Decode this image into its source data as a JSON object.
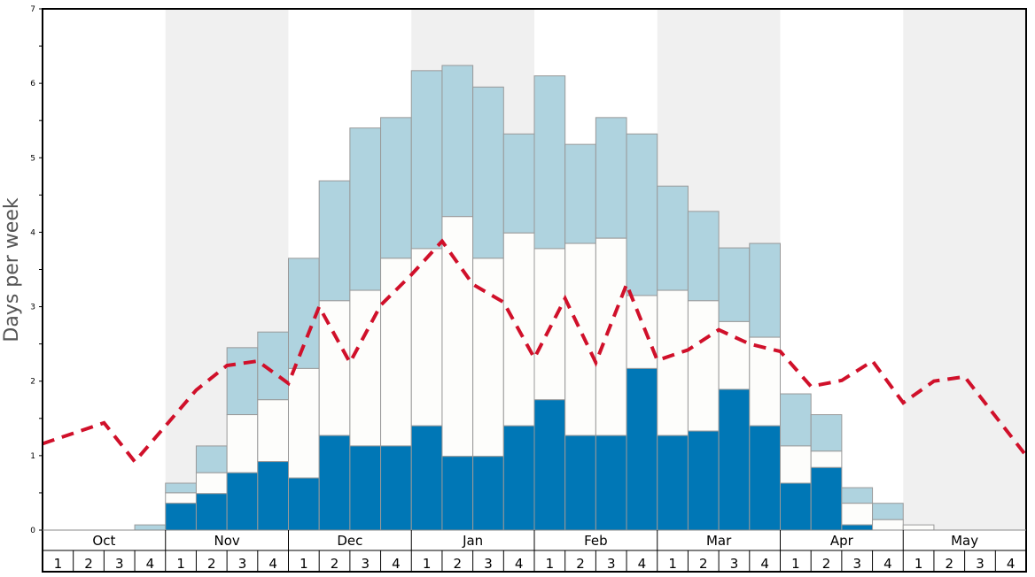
{
  "chart_data": {
    "type": "bar",
    "subtype": "stacked-bar-with-line",
    "ylabel": "Days per week",
    "ylim": [
      0,
      7
    ],
    "yticks": [
      0,
      1,
      2,
      3,
      4,
      5,
      6,
      7
    ],
    "months": [
      "Oct",
      "Nov",
      "Dec",
      "Jan",
      "Feb",
      "Mar",
      "Apr",
      "May"
    ],
    "week_labels": [
      "1",
      "2",
      "3",
      "4"
    ],
    "colors": {
      "segment_bottom": "#0077b6",
      "segment_middle": "#fdfdfb",
      "segment_top": "#afd3df",
      "line": "#d0102a",
      "shade": "#f0f0f0"
    },
    "series": [
      {
        "name": "bottom",
        "values": [
          0,
          0,
          0,
          0,
          0.36,
          0.49,
          0.77,
          0.92,
          0.7,
          1.27,
          1.13,
          1.13,
          1.4,
          0.99,
          0.99,
          1.4,
          1.75,
          1.27,
          1.27,
          2.17,
          1.27,
          1.33,
          1.89,
          1.4,
          0.63,
          0.84,
          0.07,
          0,
          0,
          0,
          0,
          0
        ]
      },
      {
        "name": "middle",
        "cumulative": [
          0,
          0,
          0,
          0,
          0.5,
          0.77,
          1.55,
          1.75,
          2.17,
          3.08,
          3.22,
          3.65,
          3.78,
          4.21,
          3.65,
          3.99,
          3.78,
          3.85,
          3.92,
          3.15,
          3.22,
          3.08,
          2.8,
          2.59,
          1.13,
          1.06,
          0.36,
          0.14,
          0.07,
          0,
          0,
          0
        ]
      },
      {
        "name": "top",
        "cumulative": [
          0,
          0,
          0,
          0.07,
          0.63,
          1.13,
          2.45,
          2.66,
          3.65,
          4.69,
          5.4,
          5.54,
          6.17,
          6.24,
          5.95,
          5.32,
          6.1,
          5.18,
          5.54,
          5.32,
          4.62,
          4.28,
          3.79,
          3.85,
          1.83,
          1.55,
          0.57,
          0.36,
          0.07,
          0,
          0,
          0
        ]
      }
    ],
    "line": {
      "name": "average",
      "style": "dashed",
      "values": [
        1.16,
        1.3,
        1.44,
        0.92,
        1.4,
        1.88,
        2.21,
        2.27,
        1.97,
        3.0,
        2.25,
        3.02,
        3.43,
        3.88,
        3.3,
        3.06,
        2.31,
        3.11,
        2.25,
        3.3,
        2.28,
        2.42,
        2.69,
        2.5,
        2.4,
        1.93,
        2.01,
        2.27,
        1.71,
        2.0,
        2.06,
        1.53,
        1.0
      ]
    }
  }
}
